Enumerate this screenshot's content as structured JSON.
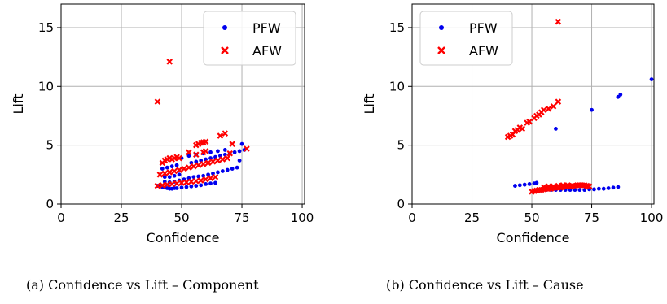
{
  "figure": {
    "captions": [
      "(a) Confidence vs Lift – Component",
      "(b) Confidence vs Lift – Cause"
    ]
  },
  "colors": {
    "PFW": "#0000ee",
    "AFW": "#ff0000",
    "grid": "#b0b0b0"
  },
  "chart_data": [
    {
      "type": "scatter",
      "title": "",
      "xlabel": "Confidence",
      "ylabel": "Lift",
      "xlim": [
        0,
        101
      ],
      "ylim": [
        0,
        17
      ],
      "xticks": [
        0,
        25,
        50,
        75,
        100
      ],
      "yticks": [
        0,
        5,
        10,
        15
      ],
      "grid": true,
      "legend": "upper-right",
      "series": [
        {
          "name": "PFW",
          "marker": "dot",
          "points": [
            [
              40,
              1.55
            ],
            [
              41,
              1.5
            ],
            [
              42,
              1.45
            ],
            [
              43,
              1.4
            ],
            [
              44,
              1.35
            ],
            [
              45,
              1.3
            ],
            [
              46,
              1.3
            ],
            [
              47,
              1.35
            ],
            [
              48,
              1.35
            ],
            [
              50,
              1.4
            ],
            [
              52,
              1.45
            ],
            [
              54,
              1.5
            ],
            [
              56,
              1.55
            ],
            [
              58,
              1.6
            ],
            [
              60,
              1.7
            ],
            [
              62,
              1.75
            ],
            [
              64,
              1.8
            ],
            [
              43,
              1.9
            ],
            [
              45,
              1.85
            ],
            [
              47,
              1.9
            ],
            [
              49,
              2.0
            ],
            [
              51,
              2.1
            ],
            [
              53,
              2.2
            ],
            [
              55,
              2.3
            ],
            [
              57,
              2.35
            ],
            [
              59,
              2.4
            ],
            [
              61,
              2.5
            ],
            [
              63,
              2.6
            ],
            [
              65,
              2.7
            ],
            [
              67,
              2.8
            ],
            [
              69,
              2.9
            ],
            [
              71,
              3.0
            ],
            [
              73,
              3.1
            ],
            [
              43,
              2.3
            ],
            [
              45,
              2.3
            ],
            [
              47,
              2.4
            ],
            [
              49,
              2.5
            ],
            [
              42,
              3.0
            ],
            [
              44,
              3.1
            ],
            [
              46,
              3.2
            ],
            [
              48,
              3.3
            ],
            [
              54,
              3.5
            ],
            [
              56,
              3.6
            ],
            [
              58,
              3.7
            ],
            [
              60,
              3.8
            ],
            [
              62,
              3.9
            ],
            [
              64,
              4.0
            ],
            [
              66,
              4.1
            ],
            [
              68,
              4.2
            ],
            [
              70,
              4.3
            ],
            [
              72,
              4.4
            ],
            [
              74,
              4.5
            ],
            [
              76,
              4.6
            ],
            [
              50,
              3.9
            ],
            [
              53,
              4.1
            ],
            [
              56,
              4.2
            ],
            [
              59,
              4.3
            ],
            [
              62,
              4.4
            ],
            [
              65,
              4.5
            ],
            [
              68,
              4.6
            ],
            [
              74,
              3.7
            ],
            [
              75,
              5.1
            ]
          ]
        },
        {
          "name": "AFW",
          "marker": "x",
          "points": [
            [
              40,
              8.7
            ],
            [
              45,
              12.1
            ],
            [
              40,
              1.55
            ],
            [
              42,
              1.6
            ],
            [
              44,
              1.65
            ],
            [
              46,
              1.7
            ],
            [
              48,
              1.75
            ],
            [
              50,
              1.8
            ],
            [
              52,
              1.85
            ],
            [
              54,
              1.9
            ],
            [
              56,
              1.95
            ],
            [
              58,
              2.0
            ],
            [
              60,
              2.1
            ],
            [
              62,
              2.2
            ],
            [
              64,
              2.3
            ],
            [
              41,
              2.5
            ],
            [
              43,
              2.6
            ],
            [
              45,
              2.7
            ],
            [
              47,
              2.8
            ],
            [
              49,
              2.9
            ],
            [
              51,
              3.0
            ],
            [
              53,
              3.1
            ],
            [
              55,
              3.2
            ],
            [
              57,
              3.3
            ],
            [
              59,
              3.4
            ],
            [
              61,
              3.5
            ],
            [
              63,
              3.6
            ],
            [
              65,
              3.7
            ],
            [
              67,
              3.8
            ],
            [
              69,
              3.9
            ],
            [
              42,
              3.5
            ],
            [
              43,
              3.7
            ],
            [
              44,
              3.8
            ],
            [
              45,
              3.9
            ],
            [
              46,
              3.8
            ],
            [
              47,
              3.9
            ],
            [
              48,
              4.0
            ],
            [
              49,
              3.9
            ],
            [
              53,
              4.4
            ],
            [
              56,
              4.2
            ],
            [
              59,
              4.4
            ],
            [
              60,
              4.5
            ],
            [
              56,
              5.0
            ],
            [
              57,
              5.1
            ],
            [
              58,
              5.2
            ],
            [
              59,
              5.25
            ],
            [
              60,
              5.3
            ],
            [
              66,
              5.8
            ],
            [
              68,
              6.0
            ],
            [
              70,
              4.3
            ],
            [
              71,
              5.1
            ],
            [
              77,
              4.7
            ]
          ]
        }
      ]
    },
    {
      "type": "scatter",
      "title": "",
      "xlabel": "Confidence",
      "ylabel": "Lift",
      "xlim": [
        0,
        101
      ],
      "ylim": [
        0,
        17
      ],
      "xticks": [
        0,
        25,
        50,
        75,
        100
      ],
      "yticks": [
        0,
        5,
        10,
        15
      ],
      "grid": true,
      "legend": "upper-left",
      "series": [
        {
          "name": "PFW",
          "marker": "dot",
          "points": [
            [
              43,
              1.55
            ],
            [
              45,
              1.6
            ],
            [
              47,
              1.65
            ],
            [
              49,
              1.7
            ],
            [
              51,
              1.75
            ],
            [
              52,
              1.8
            ],
            [
              52,
              1.1
            ],
            [
              54,
              1.15
            ],
            [
              56,
              1.2
            ],
            [
              58,
              1.2
            ],
            [
              60,
              1.2
            ],
            [
              62,
              1.2
            ],
            [
              64,
              1.2
            ],
            [
              66,
              1.2
            ],
            [
              68,
              1.2
            ],
            [
              70,
              1.2
            ],
            [
              72,
              1.2
            ],
            [
              74,
              1.25
            ],
            [
              76,
              1.25
            ],
            [
              78,
              1.3
            ],
            [
              80,
              1.3
            ],
            [
              82,
              1.35
            ],
            [
              84,
              1.4
            ],
            [
              86,
              1.45
            ],
            [
              60,
              6.4
            ],
            [
              75,
              8.0
            ],
            [
              86,
              9.1
            ],
            [
              87,
              9.3
            ],
            [
              100,
              10.6
            ]
          ]
        },
        {
          "name": "AFW",
          "marker": "x",
          "points": [
            [
              40,
              5.7
            ],
            [
              41,
              5.8
            ],
            [
              42,
              5.9
            ],
            [
              43,
              6.2
            ],
            [
              44,
              6.3
            ],
            [
              45,
              6.5
            ],
            [
              46,
              6.4
            ],
            [
              48,
              6.9
            ],
            [
              49,
              7.0
            ],
            [
              51,
              7.3
            ],
            [
              52,
              7.5
            ],
            [
              53,
              7.6
            ],
            [
              54,
              7.8
            ],
            [
              55,
              8.0
            ],
            [
              57,
              8.1
            ],
            [
              59,
              8.3
            ],
            [
              61,
              8.7
            ],
            [
              61,
              15.5
            ],
            [
              50,
              1.05
            ],
            [
              51,
              1.1
            ],
            [
              52,
              1.15
            ],
            [
              53,
              1.2
            ],
            [
              54,
              1.2
            ],
            [
              55,
              1.25
            ],
            [
              56,
              1.3
            ],
            [
              57,
              1.3
            ],
            [
              58,
              1.3
            ],
            [
              59,
              1.35
            ],
            [
              60,
              1.4
            ],
            [
              61,
              1.4
            ],
            [
              62,
              1.4
            ],
            [
              63,
              1.45
            ],
            [
              64,
              1.5
            ],
            [
              65,
              1.5
            ],
            [
              66,
              1.5
            ],
            [
              67,
              1.55
            ],
            [
              68,
              1.55
            ],
            [
              69,
              1.6
            ],
            [
              70,
              1.6
            ],
            [
              71,
              1.6
            ],
            [
              72,
              1.6
            ],
            [
              73,
              1.55
            ],
            [
              74,
              1.5
            ],
            [
              55,
              1.45
            ],
            [
              57,
              1.5
            ],
            [
              59,
              1.5
            ],
            [
              61,
              1.55
            ],
            [
              63,
              1.6
            ],
            [
              65,
              1.6
            ]
          ]
        }
      ]
    }
  ]
}
